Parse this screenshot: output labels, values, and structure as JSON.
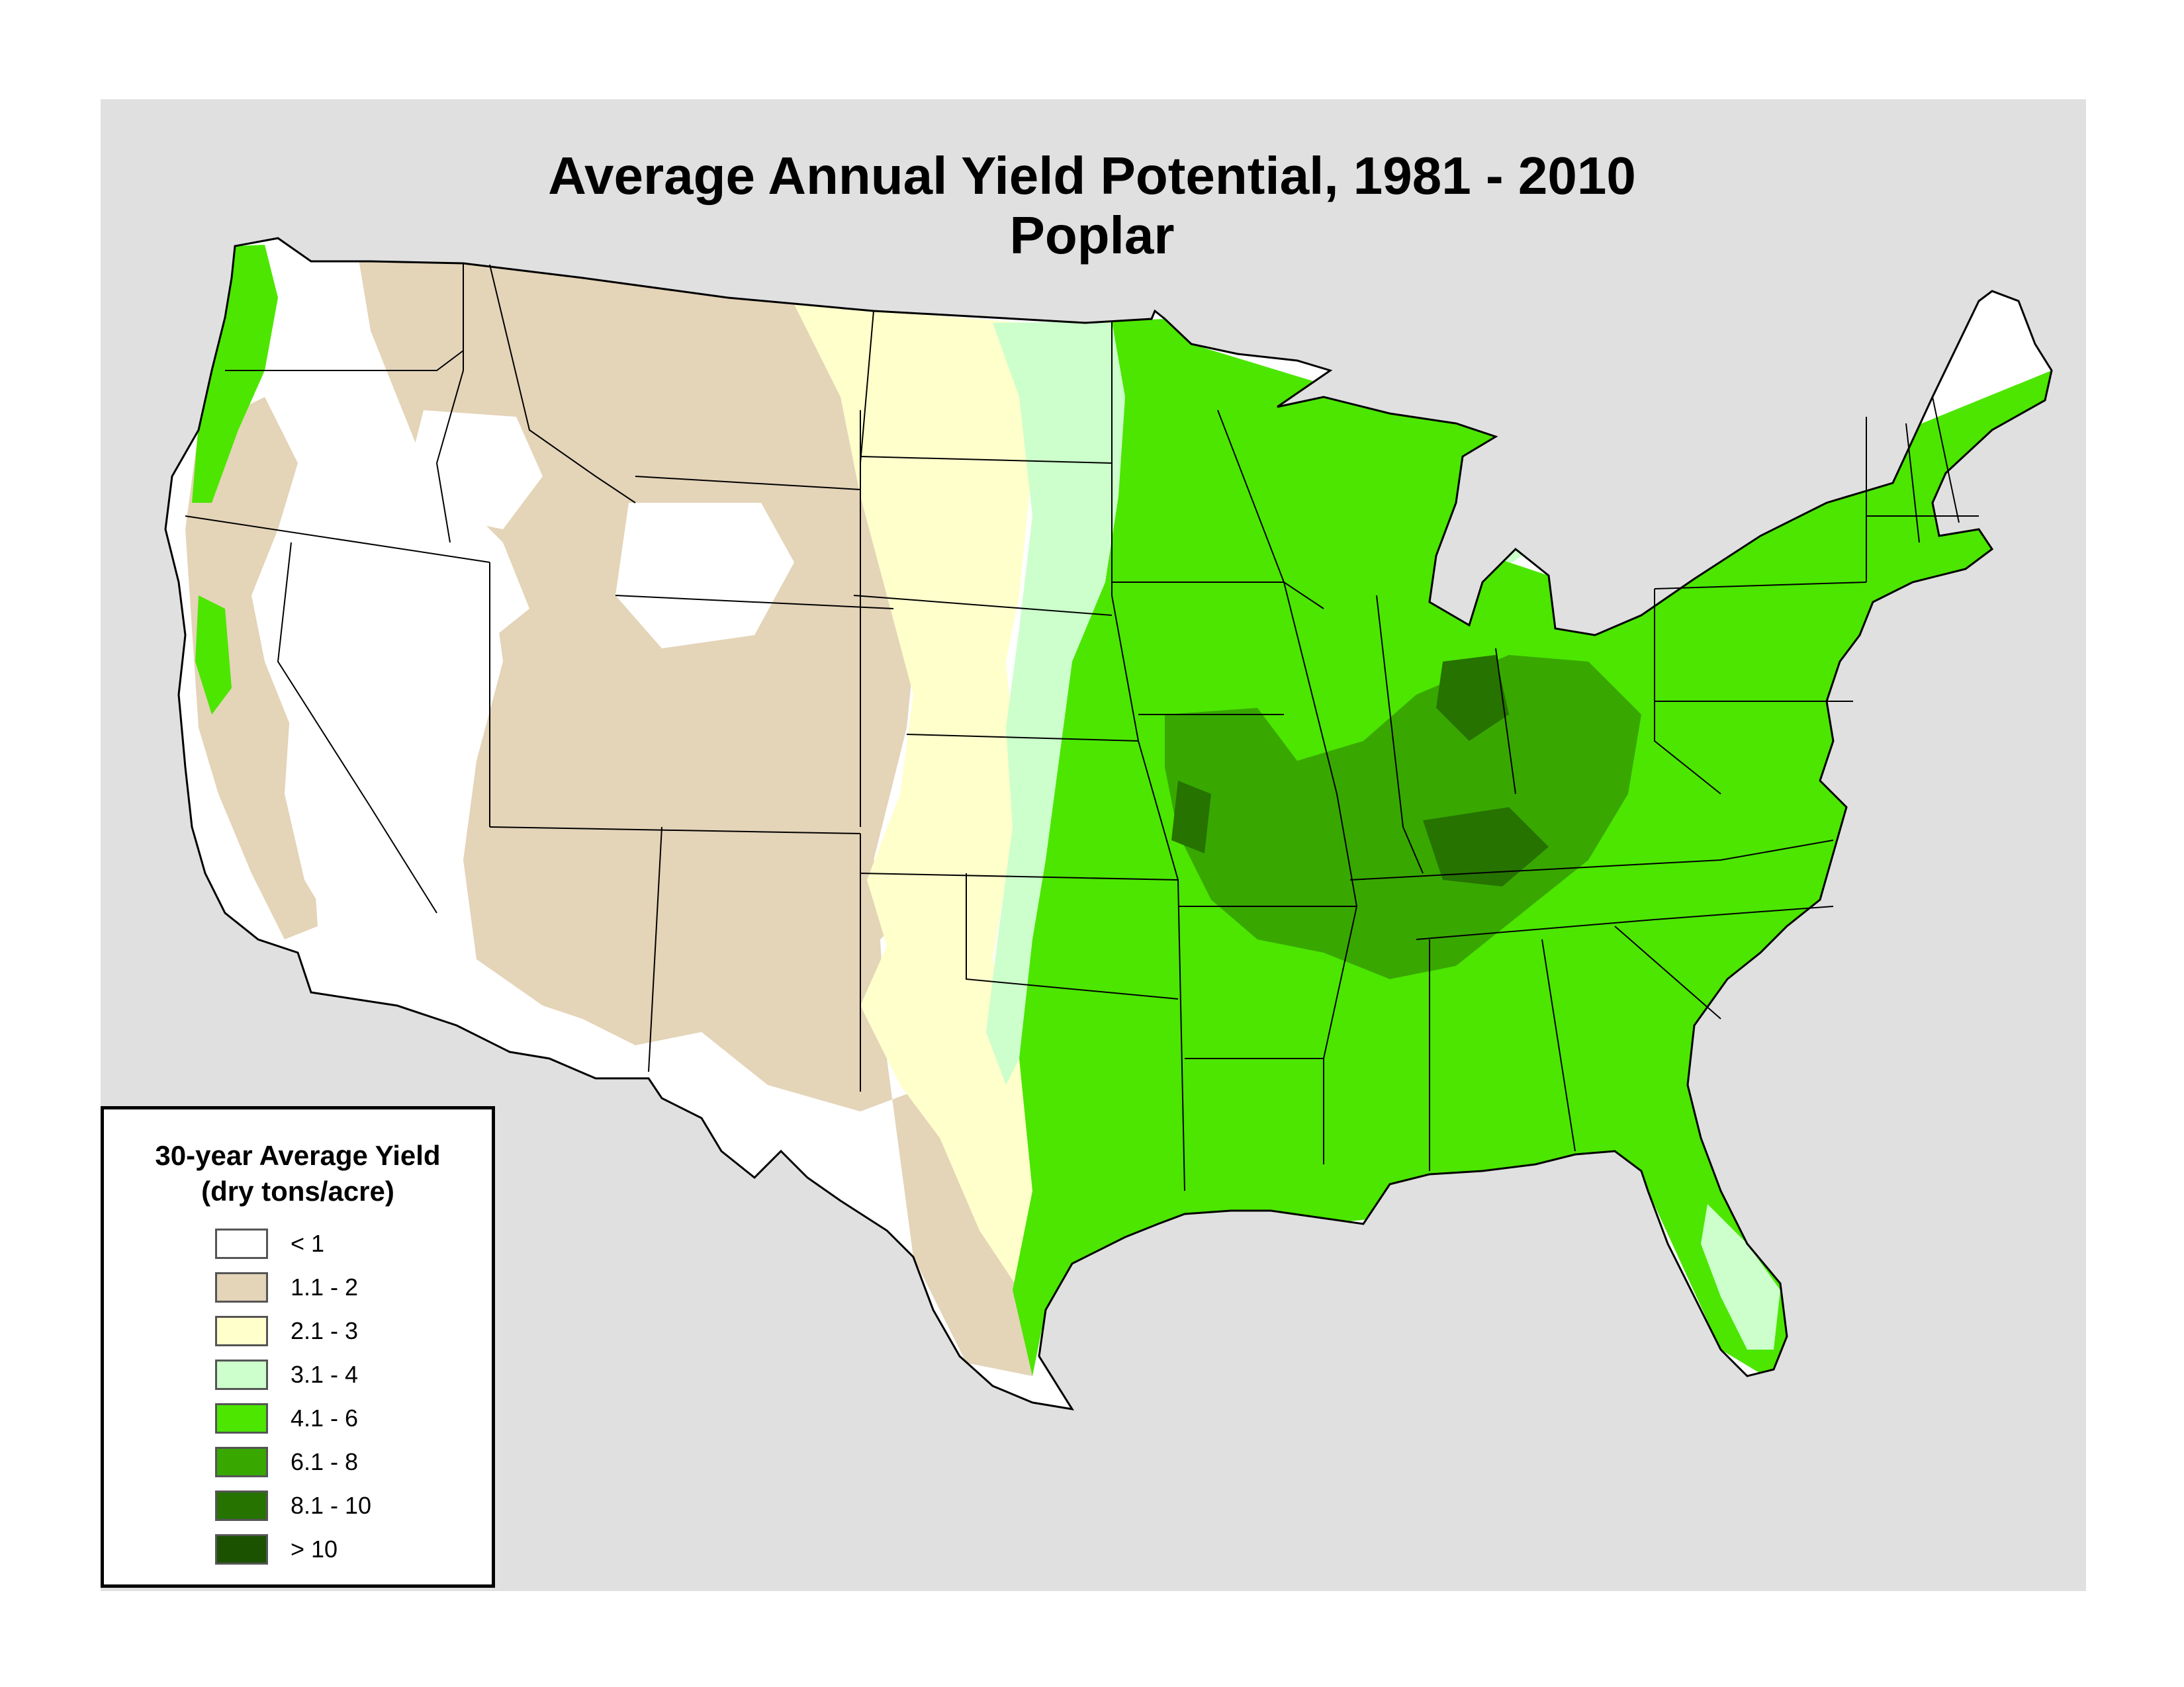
{
  "title": {
    "line1": "Average Annual Yield Potential, 1981 - 2010",
    "line2": "Poplar"
  },
  "legend": {
    "title_line1": "30-year Average Yield",
    "title_line2": "(dry tons/acre)",
    "classes": [
      {
        "label": "< 1",
        "color": "#ffffff"
      },
      {
        "label": "1.1 - 2",
        "color": "#e4d4b8"
      },
      {
        "label": "2.1 - 3",
        "color": "#ffffcc"
      },
      {
        "label": "3.1 - 4",
        "color": "#ccffcc"
      },
      {
        "label": "4.1 - 6",
        "color": "#4ce600"
      },
      {
        "label": "6.1 - 8",
        "color": "#38a800"
      },
      {
        "label": "8.1 - 10",
        "color": "#267300"
      },
      {
        "label": "> 10",
        "color": "#1a5200"
      }
    ]
  },
  "colors": {
    "background": "#e0e0e0",
    "state_boundary": "#000000"
  }
}
